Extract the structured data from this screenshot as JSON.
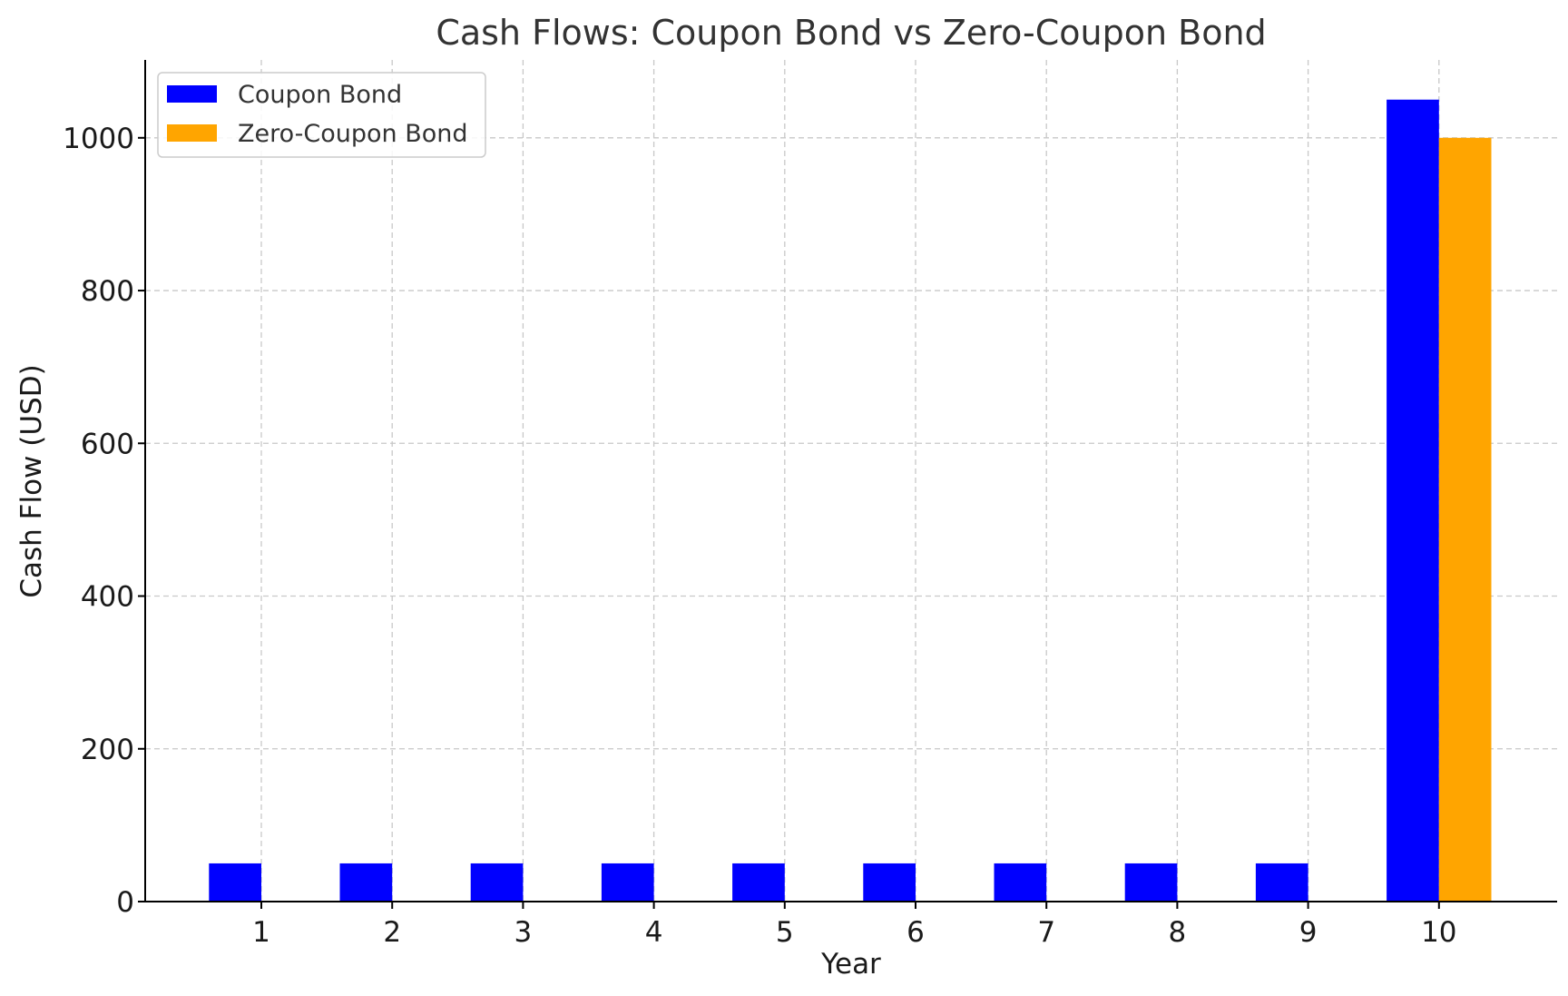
{
  "chart_data": {
    "type": "bar",
    "title": "Cash Flows: Coupon Bond vs Zero-Coupon Bond",
    "xlabel": "Year",
    "ylabel": "Cash Flow (USD)",
    "categories": [
      "1",
      "2",
      "3",
      "4",
      "5",
      "6",
      "7",
      "8",
      "9",
      "10"
    ],
    "series": [
      {
        "name": "Coupon Bond",
        "color": "#0000ff",
        "values": [
          50,
          50,
          50,
          50,
          50,
          50,
          50,
          50,
          50,
          1050
        ]
      },
      {
        "name": "Zero-Coupon Bond",
        "color": "#ffa500",
        "values": [
          0,
          0,
          0,
          0,
          0,
          0,
          0,
          0,
          0,
          1000
        ]
      }
    ],
    "ylim": [
      0,
      1102
    ],
    "yticks": [
      0,
      200,
      400,
      600,
      800,
      1000
    ],
    "grid": true,
    "legend_position": "top-left"
  }
}
